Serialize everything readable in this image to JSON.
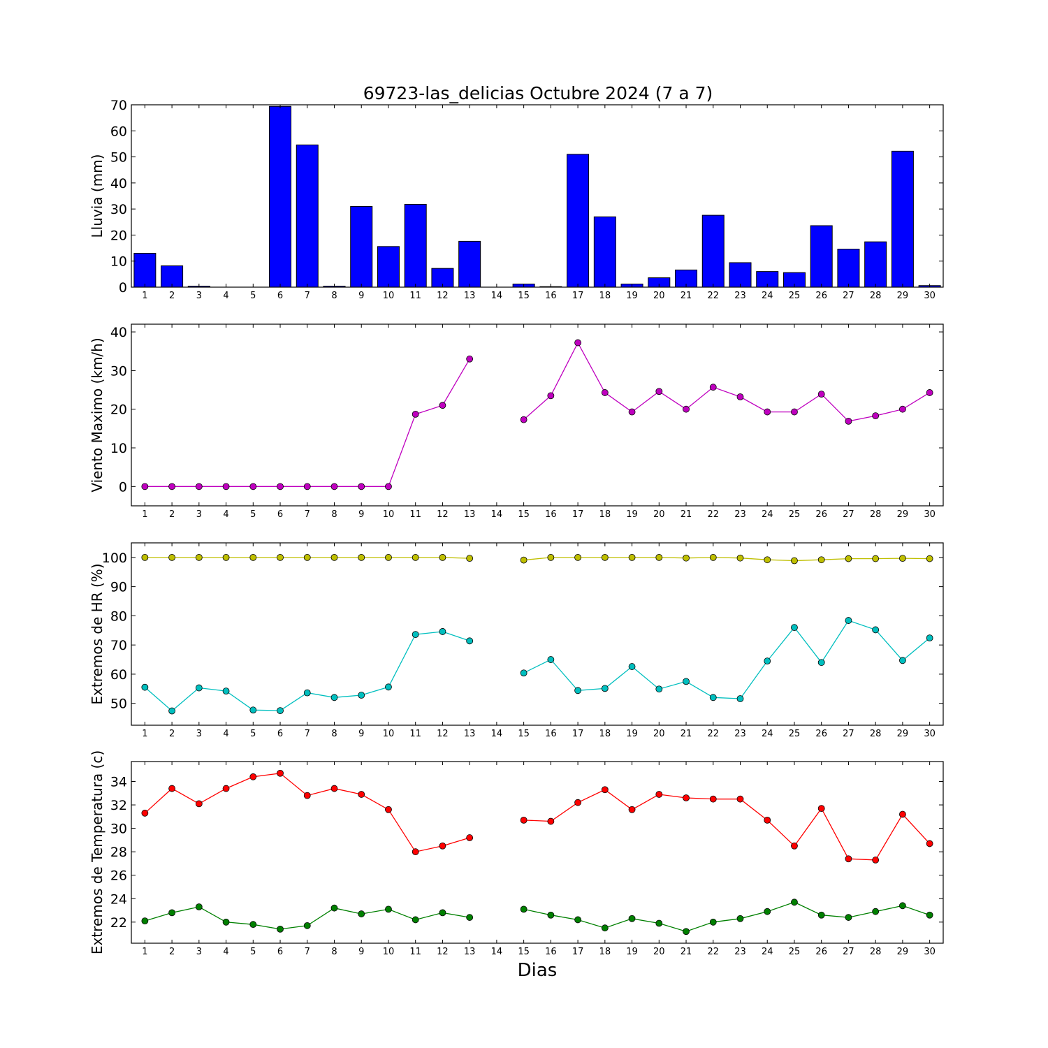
{
  "title": "69723-las_delicias Octubre 2024  (7 a 7)",
  "xlabel": "Dias",
  "chart_data": [
    {
      "id": "rain",
      "type": "bar",
      "ylabel": "Lluvia (mm)",
      "ylim": [
        0,
        70
      ],
      "yticks": [
        0,
        10,
        20,
        30,
        40,
        50,
        60,
        70
      ],
      "categories": [
        "1",
        "2",
        "3",
        "4",
        "5",
        "6",
        "7",
        "8",
        "9",
        "10",
        "11",
        "12",
        "13",
        "14",
        "15",
        "16",
        "17",
        "18",
        "19",
        "20",
        "21",
        "22",
        "23",
        "24",
        "25",
        "26",
        "27",
        "28",
        "29",
        "30"
      ],
      "values": [
        13.0,
        8.2,
        0.4,
        0,
        0,
        69.4,
        54.6,
        0.4,
        31.0,
        15.6,
        31.8,
        7.2,
        17.6,
        0,
        1.2,
        0.2,
        51.0,
        27.0,
        1.2,
        3.6,
        6.6,
        27.6,
        9.4,
        6.0,
        5.6,
        23.6,
        14.6,
        17.4,
        52.2,
        0.6
      ],
      "bar_color": "#0000ff"
    },
    {
      "id": "wind",
      "type": "line",
      "ylabel": "Viento Maximo (km/h)",
      "ylim": [
        -5,
        42
      ],
      "yticks": [
        0,
        10,
        20,
        30,
        40
      ],
      "x": [
        1,
        2,
        3,
        4,
        5,
        6,
        7,
        8,
        9,
        10,
        11,
        12,
        13,
        14,
        15,
        16,
        17,
        18,
        19,
        20,
        21,
        22,
        23,
        24,
        25,
        26,
        27,
        28,
        29,
        30
      ],
      "series": [
        {
          "color": "#bf00bf",
          "values": [
            0,
            0,
            0,
            0,
            0,
            0,
            0,
            0,
            0,
            0,
            18.7,
            21.0,
            33.0,
            null,
            17.3,
            23.5,
            37.2,
            24.3,
            19.3,
            24.6,
            20.0,
            25.7,
            23.2,
            19.3,
            19.3,
            23.9,
            16.9,
            18.3,
            20.0,
            24.3
          ]
        }
      ]
    },
    {
      "id": "humidity",
      "type": "line",
      "ylabel": "Extremos de HR (%)",
      "ylim": [
        42.5,
        105
      ],
      "yticks": [
        50,
        60,
        70,
        80,
        90,
        100
      ],
      "x": [
        1,
        2,
        3,
        4,
        5,
        6,
        7,
        8,
        9,
        10,
        11,
        12,
        13,
        14,
        15,
        16,
        17,
        18,
        19,
        20,
        21,
        22,
        23,
        24,
        25,
        26,
        27,
        28,
        29,
        30
      ],
      "series": [
        {
          "color": "#bfbf00",
          "values": [
            100,
            100,
            100,
            100,
            100,
            100,
            100,
            100,
            100,
            100,
            100,
            100,
            99.7,
            null,
            99.1,
            100,
            100,
            100,
            100,
            100,
            99.8,
            100,
            99.8,
            99.2,
            98.9,
            99.2,
            99.6,
            99.6,
            99.7,
            99.6
          ]
        },
        {
          "color": "#00bfbf",
          "values": [
            55.5,
            47.4,
            55.3,
            54.2,
            47.7,
            47.5,
            53.6,
            52.0,
            52.8,
            55.6,
            73.6,
            74.6,
            71.4,
            null,
            60.4,
            65.0,
            54.4,
            55.1,
            62.6,
            54.9,
            57.5,
            52.0,
            51.6,
            64.5,
            76.0,
            64.0,
            78.4,
            75.2,
            64.7,
            72.4
          ]
        }
      ]
    },
    {
      "id": "temperature",
      "type": "line",
      "ylabel": "Extremos de Temperatura (c)",
      "ylim": [
        20.2,
        35.7
      ],
      "yticks": [
        22,
        24,
        26,
        28,
        30,
        32,
        34
      ],
      "x": [
        1,
        2,
        3,
        4,
        5,
        6,
        7,
        8,
        9,
        10,
        11,
        12,
        13,
        14,
        15,
        16,
        17,
        18,
        19,
        20,
        21,
        22,
        23,
        24,
        25,
        26,
        27,
        28,
        29,
        30
      ],
      "series": [
        {
          "color": "#ff0000",
          "values": [
            31.3,
            33.4,
            32.1,
            33.4,
            34.4,
            34.7,
            32.8,
            33.4,
            32.9,
            31.6,
            28.0,
            28.5,
            29.2,
            null,
            30.7,
            30.6,
            32.2,
            33.3,
            31.6,
            32.9,
            32.6,
            32.5,
            32.5,
            30.7,
            28.5,
            31.7,
            27.4,
            27.3,
            31.2,
            28.7
          ]
        },
        {
          "color": "#008000",
          "values": [
            22.1,
            22.8,
            23.3,
            22.0,
            21.8,
            21.4,
            21.7,
            23.2,
            22.7,
            23.1,
            22.2,
            22.8,
            22.4,
            null,
            23.1,
            22.6,
            22.2,
            21.5,
            22.3,
            21.9,
            21.2,
            22.0,
            22.3,
            22.9,
            23.7,
            22.6,
            22.4,
            22.9,
            23.4,
            22.6
          ]
        }
      ]
    }
  ]
}
